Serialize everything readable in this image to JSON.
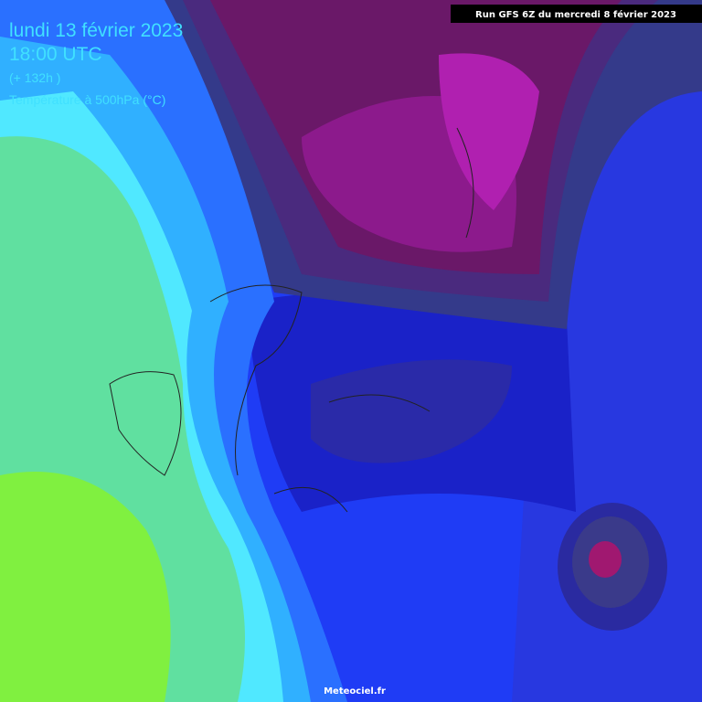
{
  "header": {
    "date": "lundi 13 février 2023",
    "time": "18:00 UTC",
    "lead": "(+ 132h )",
    "field": "Température à 500hPa (°C)"
  },
  "run": "Run GFS 6Z du mercredi 8 février 2023",
  "credit": "Meteociel.fr"
}
